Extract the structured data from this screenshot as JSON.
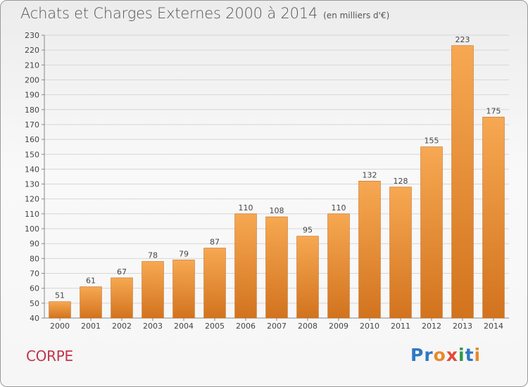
{
  "title": "Achats et Charges Externes 2000 à 2014",
  "unit": "(en milliers d'€)",
  "place": "CORPE",
  "brand": {
    "text": "Proxiti",
    "letters": [
      {
        "ch": "P",
        "color": "#2f78c4"
      },
      {
        "ch": "r",
        "color": "#2f78c4"
      },
      {
        "ch": "o",
        "color": "#e8892a"
      },
      {
        "ch": "x",
        "color": "#e04b3a"
      },
      {
        "ch": "i",
        "color": "#2f9a45"
      },
      {
        "ch": "t",
        "color": "#2f78c4"
      },
      {
        "ch": "i",
        "color": "#e8892a"
      }
    ]
  },
  "colors": {
    "bar_light": "#f7a852",
    "bar_dark": "#d2731e",
    "bar_edge": "#c36a1c",
    "grid": "#d6d6d6"
  },
  "chart_data": {
    "type": "bar",
    "title": "Achats et Charges Externes 2000 à 2014",
    "ylabel": "(en milliers d'€)",
    "categories": [
      "2000",
      "2001",
      "2002",
      "2003",
      "2004",
      "2005",
      "2006",
      "2007",
      "2008",
      "2009",
      "2010",
      "2011",
      "2012",
      "2013",
      "2014"
    ],
    "values": [
      51,
      61,
      67,
      78,
      79,
      87,
      110,
      108,
      95,
      110,
      132,
      128,
      155,
      223,
      175
    ],
    "ylim": [
      40,
      230
    ],
    "ytick_step": 10,
    "grid": true
  }
}
